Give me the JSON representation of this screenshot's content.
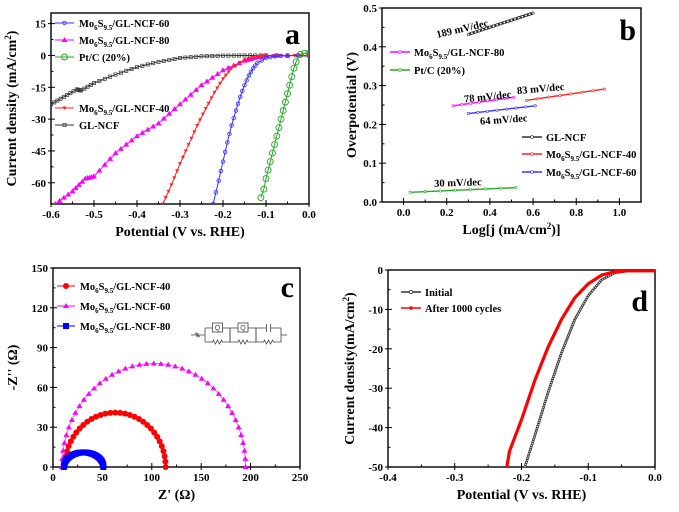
{
  "chart_data": [
    {
      "panel": "a",
      "type": "line",
      "xlabel": "Potential (V vs. RHE)",
      "ylabel": "Current density (mA/cm2)",
      "xlim": [
        -0.6,
        0.0
      ],
      "ylim": [
        -70,
        20
      ],
      "xticks": [
        -0.6,
        -0.5,
        -0.4,
        -0.3,
        -0.2,
        -0.1,
        0.0
      ],
      "xtick_labels": [
        "-0.6",
        "-0.5",
        "-0.4",
        "-0.3",
        "-0.2",
        "-0.1",
        "0.0"
      ],
      "yticks": [
        15,
        0,
        -15,
        -30,
        -45,
        -60
      ],
      "ytick_labels": [
        "15",
        "0",
        "-15",
        "-30",
        "-45",
        "-60"
      ],
      "legend": [
        {
          "label": "Mo6S9.5/GL-NCF-60",
          "color": "#3333ff",
          "marker": "circle-open"
        },
        {
          "label": "Mo6S9.5/GL-NCF-80",
          "color": "#ff00ff",
          "marker": "triangle"
        },
        {
          "label": "Pt/C (20%)",
          "color": "#22aa22",
          "marker": "circle-open-large"
        },
        {
          "label": "Mo6S9.5/GL-NCF-40",
          "color": "#ff2020",
          "marker": "triangle-down"
        },
        {
          "label": "GL-NCF",
          "color": "#333333",
          "marker": "square-open"
        }
      ],
      "series": [
        {
          "name": "GL-NCF",
          "color": "#333333",
          "x": [
            -0.6,
            -0.57,
            -0.54,
            -0.53,
            -0.5,
            -0.45,
            -0.4,
            -0.35,
            -0.3,
            -0.25,
            -0.2,
            -0.15,
            -0.1,
            0.0
          ],
          "y": [
            -23,
            -19.5,
            -16,
            -16.5,
            -13,
            -9,
            -5.5,
            -3,
            -1.2,
            -0.4,
            -0.1,
            0,
            0,
            0
          ]
        },
        {
          "name": "Mo6S9.5/GL-NCF-80",
          "color": "#ff00ff",
          "x": [
            -0.59,
            -0.55,
            -0.52,
            -0.5,
            -0.45,
            -0.4,
            -0.35,
            -0.3,
            -0.25,
            -0.2,
            -0.15,
            -0.12,
            -0.1,
            0.0
          ],
          "y": [
            -70,
            -64,
            -58,
            -57,
            -46,
            -38,
            -32,
            -23,
            -14,
            -7,
            -2.5,
            -0.8,
            -0.2,
            0
          ]
        },
        {
          "name": "Mo6S9.5/GL-NCF-40",
          "color": "#ff2020",
          "x": [
            -0.34,
            -0.32,
            -0.3,
            -0.28,
            -0.26,
            -0.24,
            -0.22,
            -0.2,
            -0.18,
            -0.15,
            -0.12,
            -0.1,
            -0.05,
            0.0
          ],
          "y": [
            -70,
            -61,
            -51,
            -42,
            -33,
            -25,
            -17.5,
            -11,
            -6,
            -2,
            -0.5,
            -0.1,
            0,
            0
          ]
        },
        {
          "name": "Mo6S9.5/GL-NCF-60",
          "color": "#3333ff",
          "x": [
            -0.223,
            -0.21,
            -0.2,
            -0.19,
            -0.18,
            -0.17,
            -0.16,
            -0.15,
            -0.14,
            -0.13,
            -0.12,
            -0.1,
            -0.08,
            -0.05,
            0.0
          ],
          "y": [
            -70,
            -59,
            -50,
            -41,
            -33,
            -26,
            -19.5,
            -14,
            -9.5,
            -6,
            -3.5,
            -1.2,
            -0.4,
            -0.1,
            0
          ]
        },
        {
          "name": "Pt/C (20%)",
          "color": "#22aa22",
          "x": [
            -0.112,
            -0.105,
            -0.1,
            -0.095,
            -0.09,
            -0.085,
            -0.08,
            -0.075,
            -0.07,
            -0.065,
            -0.06,
            -0.055,
            -0.05,
            -0.045,
            -0.04,
            -0.035,
            -0.03,
            -0.02,
            -0.01,
            0.0
          ],
          "y": [
            -67,
            -63,
            -58,
            -54,
            -50,
            -46,
            -42,
            -38,
            -34,
            -30,
            -26,
            -22,
            -18,
            -14,
            -10,
            -6,
            -3,
            0.5,
            1,
            1
          ]
        }
      ]
    },
    {
      "panel": "b",
      "type": "line",
      "xlabel": "Log[j (mA/cm2)]",
      "ylabel": "Overpotential (V)",
      "xlim": [
        -0.1,
        1.1
      ],
      "ylim": [
        0.0,
        0.5
      ],
      "xticks": [
        0.0,
        0.2,
        0.4,
        0.6,
        0.8,
        1.0
      ],
      "xtick_labels": [
        "0.0",
        "0.2",
        "0.4",
        "0.6",
        "0.8",
        "1.0"
      ],
      "yticks": [
        0.0,
        0.1,
        0.2,
        0.3,
        0.4,
        0.5
      ],
      "ytick_labels": [
        "0.0",
        "0.1",
        "0.2",
        "0.3",
        "0.4",
        "0.5"
      ],
      "legend_top": [
        {
          "label": "Mo6S9.5/GL-NCF-80",
          "color": "#ff00ff"
        },
        {
          "label": "Pt/C (20%)",
          "color": "#22aa22"
        }
      ],
      "legend_bottom": [
        {
          "label": "GL-NCF",
          "color": "#333333"
        },
        {
          "label": "Mo6S9.5/GL-NCF-40",
          "color": "#ff2020"
        },
        {
          "label": "Mo6S9.5/GL-NCF-60",
          "color": "#3333ff"
        }
      ],
      "series": [
        {
          "name": "GL-NCF",
          "color": "#333333",
          "x": [
            0.3,
            0.6
          ],
          "y": [
            0.432,
            0.487
          ],
          "annotation": "189 mV/dec"
        },
        {
          "name": "Mo6S9.5/GL-NCF-80",
          "color": "#ff00ff",
          "x": [
            0.23,
            0.51
          ],
          "y": [
            0.248,
            0.27
          ],
          "annotation": "78 mV/dec"
        },
        {
          "name": "Mo6S9.5/GL-NCF-40",
          "color": "#ff2020",
          "x": [
            0.57,
            0.93
          ],
          "y": [
            0.262,
            0.291
          ],
          "annotation": "83 mV/dec"
        },
        {
          "name": "Mo6S9.5/GL-NCF-60",
          "color": "#3333ff",
          "x": [
            0.3,
            0.61
          ],
          "y": [
            0.228,
            0.248
          ],
          "annotation": "64 mV/dec"
        },
        {
          "name": "Pt/C (20%)",
          "color": "#22aa22",
          "x": [
            0.03,
            0.52
          ],
          "y": [
            0.025,
            0.037
          ],
          "annotation": "30 mV/dec"
        }
      ]
    },
    {
      "panel": "c",
      "type": "scatter",
      "xlabel": "Z' (Ω)",
      "ylabel": "-Z'' (Ω)",
      "xlim": [
        0,
        250
      ],
      "ylim": [
        0,
        150
      ],
      "xticks": [
        0,
        50,
        100,
        150,
        200,
        250
      ],
      "xtick_labels": [
        "0",
        "50",
        "100",
        "150",
        "200",
        "250"
      ],
      "yticks": [
        0,
        30,
        60,
        90,
        120,
        150
      ],
      "ytick_labels": [
        "0",
        "30",
        "60",
        "90",
        "120",
        "150"
      ],
      "legend": [
        {
          "label": "Mo6S9.5/GL-NCF-40",
          "color": "#ff0000",
          "marker": "circle"
        },
        {
          "label": "Mo6S9.5/GL-NCF-60",
          "color": "#ff00ff",
          "marker": "triangle"
        },
        {
          "label": "Mo6S9.5/GL-NCF-80",
          "color": "#0000ff",
          "marker": "square"
        }
      ],
      "inset": "equivalent-circuit: R-(Q||R)-(Q||R)-(C||R)",
      "inset_labels": [
        "Q",
        "Q"
      ],
      "series": [
        {
          "name": "Mo6S9.5/GL-NCF-40",
          "color": "#ff0000",
          "center": 63,
          "radius": 51,
          "peak": 41
        },
        {
          "name": "Mo6S9.5/GL-NCF-60",
          "color": "#ff00ff",
          "center": 102,
          "radius": 93,
          "peak": 78
        },
        {
          "name": "Mo6S9.5/GL-NCF-80",
          "color": "#0000ff",
          "center": 31,
          "radius": 20,
          "peak": 11
        }
      ]
    },
    {
      "panel": "d",
      "type": "line",
      "xlabel": "Potential (V vs. RHE)",
      "ylabel": "Current density(mA/cm2)",
      "xlim": [
        -0.4,
        0.0
      ],
      "ylim": [
        -50,
        0
      ],
      "xticks": [
        -0.4,
        -0.3,
        -0.2,
        -0.1,
        0.0
      ],
      "xtick_labels": [
        "-0.4",
        "-0.3",
        "-0.2",
        "-0.1",
        "0.0"
      ],
      "yticks": [
        0,
        -10,
        -20,
        -30,
        -40,
        -50
      ],
      "ytick_labels": [
        "0",
        "-10",
        "-20",
        "-30",
        "-40",
        "-50"
      ],
      "legend": [
        {
          "label": "Initial",
          "color": "#333333"
        },
        {
          "label": "After 1000 cycles",
          "color": "#ff0000"
        }
      ],
      "series": [
        {
          "name": "Initial",
          "color": "#333333",
          "x": [
            -0.195,
            -0.18,
            -0.16,
            -0.14,
            -0.12,
            -0.1,
            -0.08,
            -0.06,
            -0.04,
            -0.02,
            0.0
          ],
          "y": [
            -50,
            -42,
            -31,
            -21,
            -12.5,
            -6.5,
            -2.5,
            -0.7,
            -0.2,
            -0.2,
            -0.2
          ]
        },
        {
          "name": "After 1000 cycles",
          "color": "#ff0000",
          "x": [
            -0.222,
            -0.218,
            -0.2,
            -0.18,
            -0.16,
            -0.14,
            -0.12,
            -0.1,
            -0.08,
            -0.06,
            -0.04,
            -0.02,
            0.0
          ],
          "y": [
            -50,
            -46,
            -38,
            -28,
            -19.5,
            -12.5,
            -7,
            -3.5,
            -1.3,
            -0.4,
            -0.2,
            -0.2,
            -0.2
          ]
        }
      ]
    }
  ],
  "panel_labels": [
    "a",
    "b",
    "c",
    "d"
  ]
}
